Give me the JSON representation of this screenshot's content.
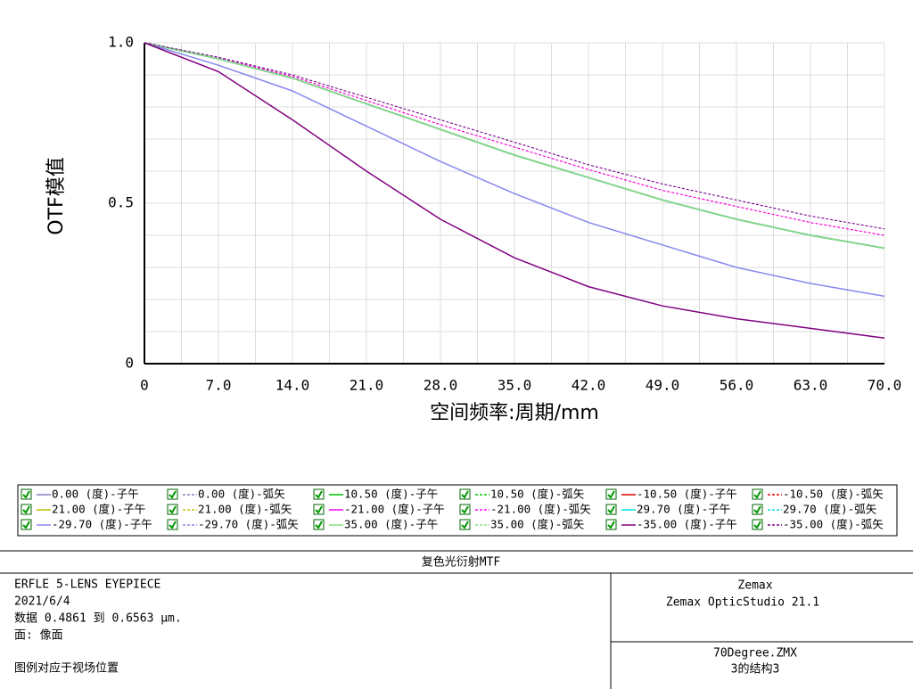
{
  "chart_data": {
    "type": "line",
    "xlabel": "空间频率:周期/mm",
    "ylabel": "OTF模值",
    "x": [
      0,
      7,
      14,
      21,
      28,
      35,
      42,
      49,
      56,
      63,
      70
    ],
    "xlim": [
      0,
      70
    ],
    "xticks": [
      0,
      {
        "value": 7,
        "label": "7.0"
      },
      {
        "value": 14,
        "label": "14.0"
      },
      {
        "value": 21,
        "label": "21.0"
      },
      {
        "value": 28,
        "label": "28.0"
      },
      {
        "value": 35,
        "label": "35.0"
      },
      {
        "value": 42,
        "label": "42.0"
      },
      {
        "value": 49,
        "label": "49.0"
      },
      {
        "value": 56,
        "label": "56.0"
      },
      {
        "value": 63,
        "label": "63.0"
      },
      {
        "value": 70,
        "label": "70.0"
      }
    ],
    "minor_xticks": [
      3.5,
      10.5,
      17.5,
      24.5,
      31.5,
      38.5,
      45.5,
      52.5,
      59.5,
      66.5
    ],
    "ylim": [
      0,
      1
    ],
    "yticks": [
      0,
      0.5,
      {
        "value": 1,
        "label": "1.0"
      }
    ],
    "minor_yticks": [
      0.1,
      0.2,
      0.3,
      0.4,
      0.6,
      0.7,
      0.8,
      0.9
    ],
    "grid": true,
    "series": [
      {
        "name": "0.00 (度)-子午",
        "color": "#8080c0",
        "dashed": false,
        "values": [
          1,
          0.95,
          0.89,
          0.81,
          0.73,
          0.65,
          0.58,
          0.51,
          0.45,
          0.4,
          0.36
        ]
      },
      {
        "name": "0.00 (度)-弧矢",
        "color": "#8080c0",
        "dashed": true,
        "values": [
          1,
          0.95,
          0.89,
          0.81,
          0.73,
          0.65,
          0.58,
          0.51,
          0.45,
          0.4,
          0.36
        ]
      },
      {
        "name": "10.50 (度)-子午",
        "color": "#00c000",
        "dashed": false,
        "values": [
          1,
          0.95,
          0.89,
          0.81,
          0.73,
          0.65,
          0.58,
          0.51,
          0.45,
          0.4,
          0.36
        ]
      },
      {
        "name": "10.50 (度)-弧矢",
        "color": "#00c000",
        "dashed": true,
        "values": [
          1,
          0.95,
          0.89,
          0.81,
          0.73,
          0.65,
          0.58,
          0.51,
          0.45,
          0.4,
          0.36
        ]
      },
      {
        "name": "-10.50 (度)-子午",
        "color": "#e00000",
        "dashed": false,
        "values": [
          1,
          0.95,
          0.89,
          0.81,
          0.73,
          0.65,
          0.58,
          0.51,
          0.45,
          0.4,
          0.36
        ]
      },
      {
        "name": "-10.50 (度)-弧矢",
        "color": "#e00000",
        "dashed": true,
        "values": [
          1,
          0.953,
          0.895,
          0.82,
          0.745,
          0.675,
          0.605,
          0.54,
          0.49,
          0.44,
          0.4
        ]
      },
      {
        "name": "21.00 (度)-子午",
        "color": "#c0c000",
        "dashed": false,
        "values": [
          1,
          0.95,
          0.89,
          0.81,
          0.73,
          0.65,
          0.58,
          0.51,
          0.45,
          0.4,
          0.36
        ]
      },
      {
        "name": "21.00 (度)-弧矢",
        "color": "#c0c000",
        "dashed": true,
        "values": [
          1,
          0.95,
          0.89,
          0.81,
          0.73,
          0.65,
          0.58,
          0.51,
          0.45,
          0.4,
          0.36
        ]
      },
      {
        "name": "-21.00 (度)-子午",
        "color": "#ff00ff",
        "dashed": false,
        "values": [
          1,
          0.95,
          0.89,
          0.81,
          0.73,
          0.65,
          0.58,
          0.51,
          0.45,
          0.4,
          0.36
        ]
      },
      {
        "name": "-21.00 (度)-弧矢",
        "color": "#ff00ff",
        "dashed": true,
        "values": [
          1,
          0.953,
          0.895,
          0.82,
          0.745,
          0.675,
          0.605,
          0.54,
          0.49,
          0.44,
          0.4
        ]
      },
      {
        "name": "29.70 (度)-子午",
        "color": "#00e0e0",
        "dashed": false,
        "values": [
          1,
          0.95,
          0.89,
          0.81,
          0.73,
          0.65,
          0.58,
          0.51,
          0.45,
          0.4,
          0.36
        ]
      },
      {
        "name": "29.70 (度)-弧矢",
        "color": "#00e0e0",
        "dashed": true,
        "values": [
          1,
          0.95,
          0.89,
          0.81,
          0.73,
          0.65,
          0.58,
          0.51,
          0.45,
          0.4,
          0.36
        ]
      },
      {
        "name": "-29.70 (度)-子午",
        "color": "#8888ee",
        "dashed": false,
        "values": [
          1,
          0.93,
          0.85,
          0.74,
          0.63,
          0.53,
          0.44,
          0.37,
          0.3,
          0.25,
          0.21
        ]
      },
      {
        "name": "-29.70 (度)-弧矢",
        "color": "#8888ee",
        "dashed": true,
        "values": [
          1,
          0.955,
          0.9,
          0.83,
          0.76,
          0.69,
          0.62,
          0.56,
          0.51,
          0.46,
          0.42
        ]
      },
      {
        "name": "35.00 (度)-子午",
        "color": "#80e080",
        "dashed": false,
        "values": [
          1,
          0.95,
          0.89,
          0.81,
          0.73,
          0.65,
          0.58,
          0.51,
          0.45,
          0.4,
          0.36
        ]
      },
      {
        "name": "35.00 (度)-弧矢",
        "color": "#80e080",
        "dashed": true,
        "values": [
          1,
          0.95,
          0.89,
          0.81,
          0.73,
          0.65,
          0.58,
          0.51,
          0.45,
          0.4,
          0.36
        ]
      },
      {
        "name": "-35.00 (度)-子午",
        "color": "#800080",
        "dashed": false,
        "values": [
          1,
          0.91,
          0.76,
          0.6,
          0.45,
          0.33,
          0.24,
          0.18,
          0.14,
          0.11,
          0.08
        ]
      },
      {
        "name": "-35.00 (度)-弧矢",
        "color": "#800080",
        "dashed": true,
        "values": [
          1,
          0.955,
          0.9,
          0.83,
          0.76,
          0.69,
          0.62,
          0.56,
          0.51,
          0.46,
          0.42
        ]
      }
    ]
  },
  "footer": {
    "title": "复色光衍射MTF",
    "left_lines": [
      "ERFLE 5-LENS EYEPIECE",
      "2021/6/4",
      "数据 0.4861 到 0.6563 μm.",
      "面: 像面"
    ],
    "legend_note": "图例对应于视场位置",
    "right_top": [
      "Zemax",
      "Zemax OpticStudio 21.1"
    ],
    "right_bottom": [
      "70Degree.ZMX",
      "3的结构3"
    ]
  }
}
